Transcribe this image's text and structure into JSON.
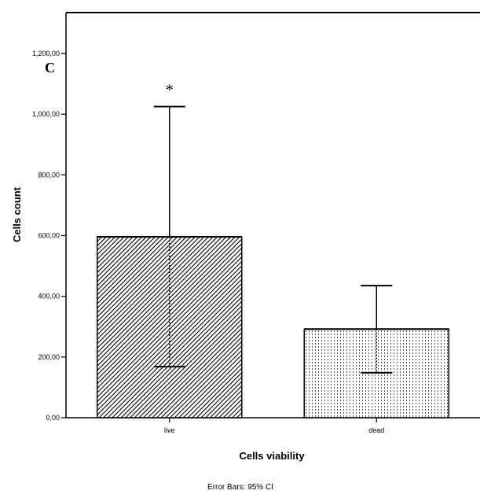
{
  "panel_label": "C",
  "footnote": "Error Bars: 95% CI",
  "chart_data": {
    "type": "bar",
    "categories": [
      "live",
      "dead"
    ],
    "values": [
      596,
      292
    ],
    "error_bars": [
      {
        "lower": 168,
        "upper": 1025
      },
      {
        "lower": 148,
        "upper": 435
      }
    ],
    "annotations": [
      "*",
      ""
    ],
    "xlabel": "Cells viability",
    "ylabel": "Cells count",
    "ylim": [
      0,
      1200
    ],
    "yticks": [
      0,
      200,
      400,
      600,
      800,
      1000,
      1200
    ],
    "ytick_labels": [
      "0,00",
      "200,00",
      "400,00",
      "600,00",
      "800,00",
      "1,000,00",
      "1,200,00"
    ],
    "fills": [
      "diagonal-hatch",
      "vertical-dots"
    ],
    "grid": false
  }
}
